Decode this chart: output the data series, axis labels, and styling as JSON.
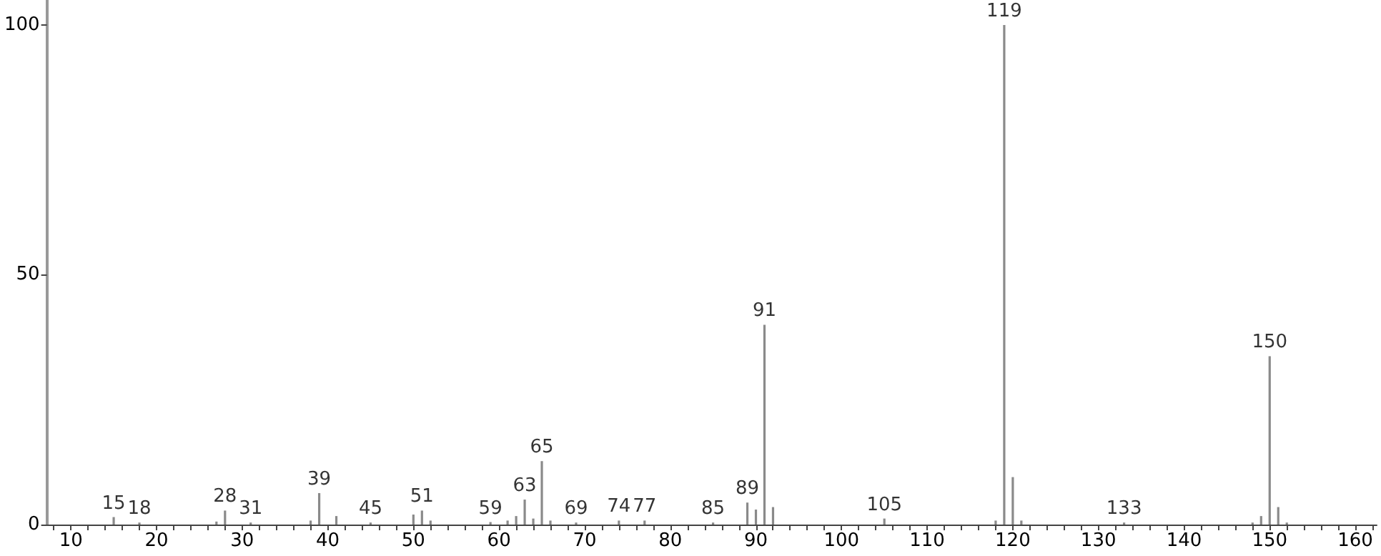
{
  "chart_data": {
    "type": "bar",
    "color": "#8a8a8a",
    "x": [
      15,
      18,
      27,
      28,
      31,
      38,
      39,
      41,
      45,
      50,
      51,
      52,
      59,
      61,
      62,
      63,
      64,
      65,
      66,
      69,
      74,
      77,
      85,
      89,
      90,
      91,
      92,
      105,
      118,
      119,
      120,
      121,
      133,
      148,
      149,
      150,
      151,
      152
    ],
    "values": [
      1.5,
      0.4,
      0.6,
      2.8,
      0.4,
      0.8,
      6.3,
      1.7,
      0.4,
      2,
      2.8,
      0.8,
      0.5,
      0.8,
      1.7,
      5,
      1.2,
      12.7,
      0.8,
      0.4,
      0.8,
      0.8,
      0.4,
      4.4,
      3,
      40,
      3.5,
      1.2,
      0.8,
      100,
      9.5,
      0.8,
      0.4,
      0.4,
      1.7,
      33.7,
      3.5,
      0.4
    ],
    "xlim": [
      7.2,
      162.5
    ],
    "xticks": [
      {
        "value": 8,
        "label": null
      },
      10,
      {
        "value": 12,
        "label": null
      },
      {
        "value": 14,
        "label": null
      },
      {
        "value": 16,
        "label": null
      },
      {
        "value": 18,
        "label": null
      },
      20,
      {
        "value": 22,
        "label": null
      },
      {
        "value": 24,
        "label": null
      },
      {
        "value": 26,
        "label": null
      },
      {
        "value": 28,
        "label": null
      },
      30,
      {
        "value": 32,
        "label": null
      },
      {
        "value": 34,
        "label": null
      },
      {
        "value": 36,
        "label": null
      },
      {
        "value": 38,
        "label": null
      },
      40,
      {
        "value": 42,
        "label": null
      },
      {
        "value": 44,
        "label": null
      },
      {
        "value": 46,
        "label": null
      },
      {
        "value": 48,
        "label": null
      },
      50,
      {
        "value": 52,
        "label": null
      },
      {
        "value": 54,
        "label": null
      },
      {
        "value": 56,
        "label": null
      },
      {
        "value": 58,
        "label": null
      },
      60,
      {
        "value": 62,
        "label": null
      },
      {
        "value": 64,
        "label": null
      },
      {
        "value": 66,
        "label": null
      },
      {
        "value": 68,
        "label": null
      },
      70,
      {
        "value": 72,
        "label": null
      },
      {
        "value": 74,
        "label": null
      },
      {
        "value": 76,
        "label": null
      },
      {
        "value": 78,
        "label": null
      },
      80,
      {
        "value": 82,
        "label": null
      },
      {
        "value": 84,
        "label": null
      },
      {
        "value": 86,
        "label": null
      },
      {
        "value": 88,
        "label": null
      },
      90,
      {
        "value": 92,
        "label": null
      },
      {
        "value": 94,
        "label": null
      },
      {
        "value": 96,
        "label": null
      },
      {
        "value": 98,
        "label": null
      },
      100,
      {
        "value": 102,
        "label": null
      },
      {
        "value": 104,
        "label": null
      },
      {
        "value": 106,
        "label": null
      },
      {
        "value": 108,
        "label": null
      },
      110,
      {
        "value": 112,
        "label": null
      },
      {
        "value": 114,
        "label": null
      },
      {
        "value": 116,
        "label": null
      },
      {
        "value": 118,
        "label": null
      },
      120,
      {
        "value": 122,
        "label": null
      },
      {
        "value": 124,
        "label": null
      },
      {
        "value": 126,
        "label": null
      },
      {
        "value": 128,
        "label": null
      },
      130,
      {
        "value": 132,
        "label": null
      },
      {
        "value": 134,
        "label": null
      },
      {
        "value": 136,
        "label": null
      },
      {
        "value": 138,
        "label": null
      },
      140,
      {
        "value": 142,
        "label": null
      },
      {
        "value": 144,
        "label": null
      },
      {
        "value": 146,
        "label": null
      },
      {
        "value": 148,
        "label": null
      },
      150,
      {
        "value": 152,
        "label": null
      },
      {
        "value": 154,
        "label": null
      },
      {
        "value": 156,
        "label": null
      },
      {
        "value": 158,
        "label": null
      },
      160,
      {
        "value": 162,
        "label": null
      }
    ],
    "ylim": [
      0,
      105
    ],
    "yticks": [
      0,
      50,
      100
    ],
    "grid": false,
    "annotations": [
      {
        "text": "15",
        "x": 15,
        "y": 1.5
      },
      {
        "text": "18",
        "x": 18,
        "y": 0.4
      },
      {
        "text": "28",
        "x": 28,
        "y": 2.8
      },
      {
        "text": "31",
        "x": 31,
        "y": 0.4
      },
      {
        "text": "39",
        "x": 39,
        "y": 6.3
      },
      {
        "text": "45",
        "x": 45,
        "y": 0.4
      },
      {
        "text": "51",
        "x": 51,
        "y": 2.8
      },
      {
        "text": "59",
        "x": 59,
        "y": 0.5
      },
      {
        "text": "63",
        "x": 63,
        "y": 5
      },
      {
        "text": "65",
        "x": 65,
        "y": 12.7
      },
      {
        "text": "69",
        "x": 69,
        "y": 0.4
      },
      {
        "text": "74",
        "x": 74,
        "y": 0.8
      },
      {
        "text": "77",
        "x": 77,
        "y": 0.8
      },
      {
        "text": "85",
        "x": 85,
        "y": 0.4
      },
      {
        "text": "89",
        "x": 89,
        "y": 4.4
      },
      {
        "text": "91",
        "x": 91,
        "y": 40
      },
      {
        "text": "105",
        "x": 105,
        "y": 1.2
      },
      {
        "text": "119",
        "x": 119,
        "y": 100
      },
      {
        "text": "133",
        "x": 133,
        "y": 0.4
      },
      {
        "text": "150",
        "x": 150,
        "y": 33.7
      }
    ]
  }
}
